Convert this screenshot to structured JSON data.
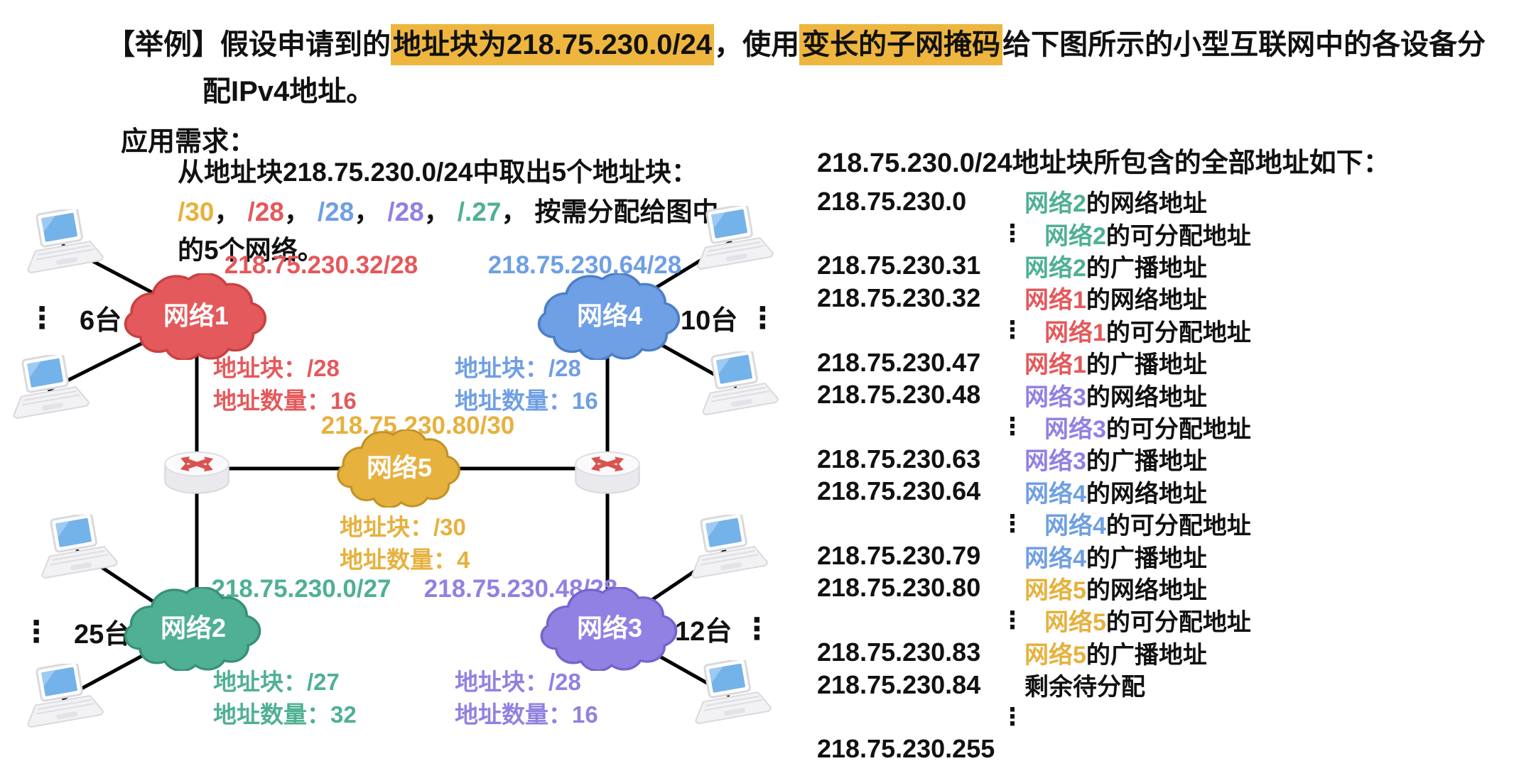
{
  "colors": {
    "highlight": "#eeb63f",
    "line": "#000000",
    "net_text": "#ffffff"
  },
  "header": {
    "line1_pre": "【举例】假设申请到的",
    "line1_highlight1": "地址块为218.75.230.0/24",
    "line1_mid": "，使用",
    "line1_highlight2": "变长的子网掩码",
    "line1_post": "给下图所示的小型互联网中的各设备分",
    "line2": "配IPv4地址。"
  },
  "requirements": {
    "heading": "应用需求：",
    "intro": "从地址块218.75.230.0/24中取出5个地址块：",
    "blocks": [
      {
        "text": "/30",
        "color": "#e6b13d"
      },
      {
        "text": "/28",
        "color": "#e4595b"
      },
      {
        "text": "/28",
        "color": "#6f9fe4"
      },
      {
        "text": "/28",
        "color": "#9181e2"
      },
      {
        "text": "/.27",
        "color": "#4fb093"
      }
    ],
    "separator": "，",
    "tail": "按需分配给图中",
    "tail2": "的5个网络。"
  },
  "diagram": {
    "ellipsis": "⋮",
    "networks": [
      {
        "key": "net1",
        "label": "网络1",
        "cidr": "218.75.230.32/28",
        "block_label": "地址块：/28",
        "count_label": "地址数量：16",
        "hosts": "6台",
        "color": "#e4595b",
        "stroke": "#c94143"
      },
      {
        "key": "net2",
        "label": "网络2",
        "cidr": "218.75.230.0/27",
        "block_label": "地址块：/27",
        "count_label": "地址数量：32",
        "hosts": "25台",
        "color": "#4fb093",
        "stroke": "#389179"
      },
      {
        "key": "net3",
        "label": "网络3",
        "cidr": "218.75.230.48/28",
        "block_label": "地址块：/28",
        "count_label": "地址数量：16",
        "hosts": "12台",
        "color": "#9181e2",
        "stroke": "#7464cd"
      },
      {
        "key": "net4",
        "label": "网络4",
        "cidr": "218.75.230.64/28",
        "block_label": "地址块：/28",
        "count_label": "地址数量：16",
        "hosts": "10台",
        "color": "#6f9fe4",
        "stroke": "#4d7fc7"
      },
      {
        "key": "net5",
        "label": "网络5",
        "cidr": "218.75.230.80/30",
        "block_label": "地址块：/30",
        "count_label": "地址数量：4",
        "color": "#e6b13d",
        "stroke": "#c3922a"
      }
    ]
  },
  "net_colors": {
    "网络1": "#e4595b",
    "网络2": "#4fb093",
    "网络3": "#9181e2",
    "网络4": "#6f9fe4",
    "网络5": "#e6b13d"
  },
  "address_list": {
    "title": "218.75.230.0/24地址块所包含的全部地址如下：",
    "rows": [
      {
        "addr": "218.75.230.0",
        "net": "网络2",
        "desc": "的网络地址"
      },
      {
        "addr": "⋮",
        "net": "网络2",
        "desc": "的可分配地址"
      },
      {
        "addr": "218.75.230.31",
        "net": "网络2",
        "desc": "的广播地址"
      },
      {
        "addr": "218.75.230.32",
        "net": "网络1",
        "desc": "的网络地址"
      },
      {
        "addr": "⋮",
        "net": "网络1",
        "desc": "的可分配地址"
      },
      {
        "addr": "218.75.230.47",
        "net": "网络1",
        "desc": "的广播地址"
      },
      {
        "addr": "218.75.230.48",
        "net": "网络3",
        "desc": "的网络地址"
      },
      {
        "addr": "⋮",
        "net": "网络3",
        "desc": "的可分配地址"
      },
      {
        "addr": "218.75.230.63",
        "net": "网络3",
        "desc": "的广播地址"
      },
      {
        "addr": "218.75.230.64",
        "net": "网络4",
        "desc": "的网络地址"
      },
      {
        "addr": "⋮",
        "net": "网络4",
        "desc": "的可分配地址"
      },
      {
        "addr": "218.75.230.79",
        "net": "网络4",
        "desc": "的广播地址"
      },
      {
        "addr": "218.75.230.80",
        "net": "网络5",
        "desc": "的网络地址"
      },
      {
        "addr": "⋮",
        "net": "网络5",
        "desc": "的可分配地址"
      },
      {
        "addr": "218.75.230.83",
        "net": "网络5",
        "desc": "的广播地址"
      },
      {
        "addr": "218.75.230.84",
        "net": "",
        "desc": "剩余待分配"
      },
      {
        "addr": "⋮",
        "net": "",
        "desc": ""
      },
      {
        "addr": "218.75.230.255",
        "net": "",
        "desc": ""
      }
    ]
  }
}
